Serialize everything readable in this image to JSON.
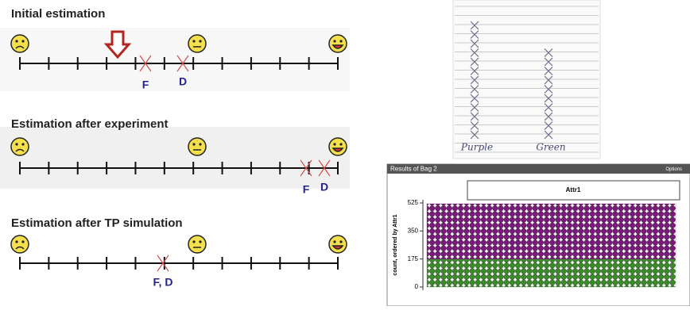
{
  "estimations": [
    {
      "title": "Initial estimation",
      "labels": [
        "F",
        "D"
      ]
    },
    {
      "title": "Estimation after experiment",
      "labels": [
        "F",
        "D"
      ]
    },
    {
      "title": "Estimation after TP simulation",
      "labels": [
        "F, D"
      ]
    }
  ],
  "tally": {
    "categories": [
      "Purple",
      "Green"
    ],
    "values": [
      13,
      10
    ]
  },
  "chart_data": {
    "type": "dotplot",
    "title": "Results of Bag 2",
    "options": "Options",
    "legend_title": "Attr1",
    "ylabel": "count, ordered by Attr1",
    "ylim": [
      0,
      525
    ],
    "yticks": [
      0,
      175,
      350,
      525
    ],
    "series": [
      {
        "name": "Green",
        "color": "#3d8a2c",
        "values": [
          175
        ]
      },
      {
        "name": "Purple",
        "color": "#7a1a7a",
        "values": [
          345
        ]
      }
    ]
  }
}
